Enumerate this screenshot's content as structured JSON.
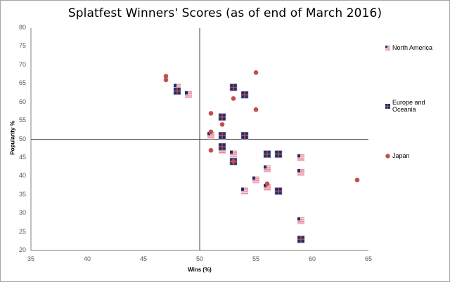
{
  "chart_data": {
    "type": "scatter",
    "title": "Splatfest Winners' Scores (as of end of March 2016)",
    "xlabel": "Wins (%)",
    "ylabel": "Popularity %",
    "xlim": [
      35,
      65
    ],
    "ylim": [
      20,
      80
    ],
    "x_ticks": [
      35,
      40,
      45,
      50,
      55,
      60,
      65
    ],
    "y_ticks": [
      20,
      25,
      30,
      35,
      40,
      45,
      50,
      55,
      60,
      65,
      70,
      75,
      80
    ],
    "grid": false,
    "crosshair": {
      "x": 50,
      "y": 50
    },
    "legend_position": "right",
    "series": [
      {
        "name": "North America",
        "marker": "us-flag",
        "points": [
          [
            48,
            64
          ],
          [
            49,
            62
          ],
          [
            51,
            51
          ],
          [
            52,
            47
          ],
          [
            53,
            46
          ],
          [
            56,
            42
          ],
          [
            55,
            39
          ],
          [
            56,
            37
          ],
          [
            54,
            36
          ],
          [
            59,
            45
          ],
          [
            59,
            41
          ],
          [
            59,
            28
          ]
        ]
      },
      {
        "name": "Europe and Oceania",
        "marker": "eu-cross-flag",
        "points": [
          [
            48,
            63
          ],
          [
            53,
            64
          ],
          [
            54,
            62
          ],
          [
            52,
            56
          ],
          [
            52,
            51
          ],
          [
            54,
            51
          ],
          [
            52,
            48
          ],
          [
            53,
            44
          ],
          [
            56,
            46
          ],
          [
            57,
            46
          ],
          [
            57,
            36
          ],
          [
            59,
            23
          ]
        ]
      },
      {
        "name": "Japan",
        "marker": "red-circle",
        "points": [
          [
            47,
            67
          ],
          [
            47,
            66
          ],
          [
            55,
            68
          ],
          [
            53,
            61
          ],
          [
            51,
            57
          ],
          [
            55,
            58
          ],
          [
            52,
            54
          ],
          [
            51,
            52
          ],
          [
            51,
            47
          ],
          [
            53,
            44
          ],
          [
            56,
            38
          ],
          [
            64,
            39
          ]
        ]
      }
    ]
  },
  "colors": {
    "japan": "#c0504d",
    "eu_blue": "#1f2d6b",
    "eu_cross": "#c0504d",
    "us_red": "#e88a9a",
    "us_white": "#f6d6dc",
    "us_blue": "#1f2d6b",
    "axis": "#808080",
    "crosshair": "#404040"
  },
  "legend": {
    "north_america": "North America",
    "europe": "Europe and Oceania",
    "japan": "Japan"
  }
}
